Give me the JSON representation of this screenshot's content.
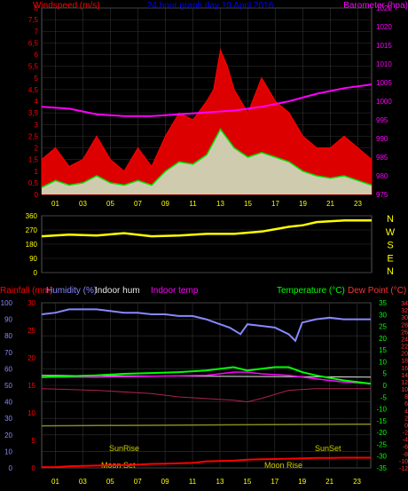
{
  "chart_data": [
    {
      "type": "line",
      "title": "24 hour graph day  19 April 2016",
      "ylabel_left": "Windspeed (m/s)",
      "ylabel_right": "Barometer (hpa)",
      "ylim_left": [
        0,
        8
      ],
      "ylim_right": [
        975,
        1025
      ],
      "y_ticks_left": [
        "0",
        "0,5",
        "1",
        "1,5",
        "2",
        "2,5",
        "3",
        "3,5",
        "4",
        "4,5",
        "5",
        "5,5",
        "6",
        "6,5",
        "7",
        "7,5",
        "8"
      ],
      "y_ticks_right": [
        "975",
        "980",
        "985",
        "990",
        "995",
        "1000",
        "1005",
        "1010",
        "1015",
        "1020",
        "1025"
      ],
      "x_ticks": [
        "01",
        "03",
        "05",
        "07",
        "09",
        "11",
        "13",
        "15",
        "17",
        "19",
        "21",
        "23"
      ],
      "series": [
        {
          "name": "Windspeed gust",
          "color": "#ff0000",
          "x": [
            0,
            1,
            2,
            3,
            4,
            5,
            6,
            7,
            8,
            9,
            10,
            11,
            12,
            12.5,
            13,
            13.5,
            14,
            15,
            16,
            17,
            18,
            19,
            20,
            21,
            22,
            23,
            24
          ],
          "values": [
            1.5,
            2,
            1.2,
            1.5,
            2.5,
            1.5,
            1,
            2,
            1.2,
            2.5,
            3.5,
            3.2,
            4,
            4.5,
            6.2,
            5.5,
            4.5,
            3.5,
            5,
            4,
            3.5,
            2.5,
            2,
            2,
            2.5,
            2,
            1.5
          ]
        },
        {
          "name": "Windspeed average",
          "color": "#00dd00",
          "x": [
            0,
            1,
            2,
            3,
            4,
            5,
            6,
            7,
            8,
            9,
            10,
            11,
            12,
            13,
            13.5,
            14,
            15,
            16,
            17,
            18,
            19,
            20,
            21,
            22,
            23,
            24
          ],
          "values": [
            0.3,
            0.6,
            0.4,
            0.5,
            0.8,
            0.5,
            0.4,
            0.6,
            0.4,
            1,
            1.4,
            1.3,
            1.7,
            2.8,
            2.4,
            2,
            1.6,
            1.8,
            1.6,
            1.4,
            1,
            0.8,
            0.7,
            0.8,
            0.6,
            0.4
          ]
        },
        {
          "name": "Barometer",
          "color": "#ff00ff",
          "x": [
            0,
            2,
            4,
            6,
            8,
            10,
            12,
            14,
            16,
            18,
            20,
            22,
            24
          ],
          "values": [
            998.5,
            998,
            996.5,
            996,
            996,
            996.5,
            997,
            997.5,
            998.5,
            1000,
            1002,
            1003.5,
            1004.5
          ]
        }
      ]
    },
    {
      "type": "line",
      "ylabel_right": [
        "N",
        "W",
        "S",
        "E",
        "N"
      ],
      "ylim": [
        0,
        360
      ],
      "y_ticks": [
        "0",
        "90",
        "180",
        "270",
        "360"
      ],
      "series": [
        {
          "name": "Wind direction",
          "color": "#ffff00",
          "x": [
            0,
            2,
            4,
            6,
            8,
            10,
            12,
            14,
            16,
            17,
            18,
            19,
            20,
            22,
            24
          ],
          "values": [
            230,
            240,
            235,
            250,
            230,
            235,
            245,
            245,
            260,
            275,
            290,
            300,
            320,
            330,
            330
          ]
        }
      ]
    },
    {
      "type": "line",
      "legend": [
        "Rainfall (mm)",
        "Humidity (%)",
        "Indoor hum",
        "Indoor temp",
        "Temperature (°C)",
        "Dew Point (°C)"
      ],
      "legend_colors": [
        "#ff0000",
        "#8888ff",
        "#e8e8e8",
        "#ff00ff",
        "#00ff00",
        "#ff3333"
      ],
      "ylim_humidity": [
        0,
        100
      ],
      "y_ticks_humidity": [
        "0",
        "10",
        "20",
        "30",
        "40",
        "50",
        "60",
        "70",
        "80",
        "90",
        "100"
      ],
      "ylim_rain": [
        0,
        30
      ],
      "y_ticks_rain": [
        "0",
        "5",
        "10",
        "15",
        "20",
        "25",
        "30"
      ],
      "ylim_temp": [
        -35,
        35
      ],
      "y_ticks_temp": [
        "-35",
        "-30",
        "-25",
        "-20",
        "-15",
        "-10",
        "-5",
        "0",
        "5",
        "10",
        "15",
        "20",
        "25",
        "30",
        "35"
      ],
      "y_ticks_dew": [
        "-12",
        "-10",
        "-8",
        "-6",
        "-4",
        "-2",
        "0",
        "2",
        "4",
        "6",
        "8",
        "10",
        "12",
        "14",
        "16",
        "18",
        "20",
        "22",
        "24",
        "26",
        "28",
        "30",
        "32",
        "34"
      ],
      "x_ticks": [
        "01",
        "03",
        "05",
        "07",
        "09",
        "11",
        "13",
        "15",
        "17",
        "19",
        "21",
        "23"
      ],
      "annotations": [
        "SunRise",
        "Moon Set",
        "Moon Rise",
        "SunSet"
      ],
      "series": [
        {
          "name": "Humidity",
          "color": "#8888ff",
          "x": [
            0,
            1,
            2,
            3,
            4,
            5,
            6,
            7,
            8,
            9,
            10,
            11,
            12,
            13,
            13.7,
            14.5,
            15,
            16,
            17,
            18,
            18.5,
            19,
            20,
            21,
            22,
            23,
            24
          ],
          "values": [
            93,
            94,
            96,
            96,
            96,
            95,
            94,
            94,
            93,
            93,
            92,
            92,
            90,
            87,
            85,
            81,
            87,
            86,
            85,
            81,
            77,
            88,
            90,
            91,
            90,
            90,
            90
          ]
        },
        {
          "name": "Indoor hum",
          "color": "#e8e8e8",
          "x": [
            0,
            24
          ],
          "values": [
            56,
            55
          ]
        },
        {
          "name": "Indoor temp",
          "color": "#ff00ff",
          "x": [
            0,
            4,
            8,
            12,
            13,
            14,
            15,
            16,
            18,
            20,
            22,
            24
          ],
          "values": [
            55,
            55,
            55.5,
            56,
            57,
            58,
            58,
            57,
            56,
            54,
            52,
            51
          ]
        },
        {
          "name": "Temperature",
          "color": "#00ff00",
          "x": [
            0,
            2,
            4,
            6,
            8,
            10,
            12,
            13,
            14,
            15,
            16,
            17,
            18,
            19,
            20,
            22,
            24
          ],
          "values": [
            55,
            55.5,
            56,
            57,
            57.5,
            58,
            59,
            60,
            61,
            59,
            60,
            61,
            61,
            58,
            56,
            53,
            51
          ]
        },
        {
          "name": "Dew Point",
          "color": "#aa2255",
          "x": [
            0,
            4,
            8,
            10,
            12,
            14,
            15,
            16,
            18,
            20,
            22,
            24
          ],
          "values": [
            48,
            47,
            45,
            43,
            42,
            41,
            40,
            42,
            47,
            48,
            48,
            48
          ]
        },
        {
          "name": "Outside temp trace",
          "color": "#888822",
          "x": [
            0,
            24
          ],
          "values": [
            25.5,
            26.5
          ]
        },
        {
          "name": "Rainfall",
          "color": "#ff0000",
          "x": [
            0,
            1,
            2,
            3,
            4,
            5,
            6,
            7,
            8,
            9,
            10,
            11,
            12,
            13,
            14,
            15,
            16,
            17,
            18,
            19,
            20,
            21,
            22,
            23,
            24
          ],
          "values": [
            0.5,
            0.5,
            1,
            1.2,
            1.4,
            1.6,
            1.8,
            2,
            2.4,
            2.6,
            2.8,
            3,
            4,
            4.2,
            4.4,
            5,
            5.2,
            5.4,
            5.6,
            5.8,
            6,
            6,
            6.2,
            6.2,
            6.2
          ]
        }
      ]
    }
  ]
}
